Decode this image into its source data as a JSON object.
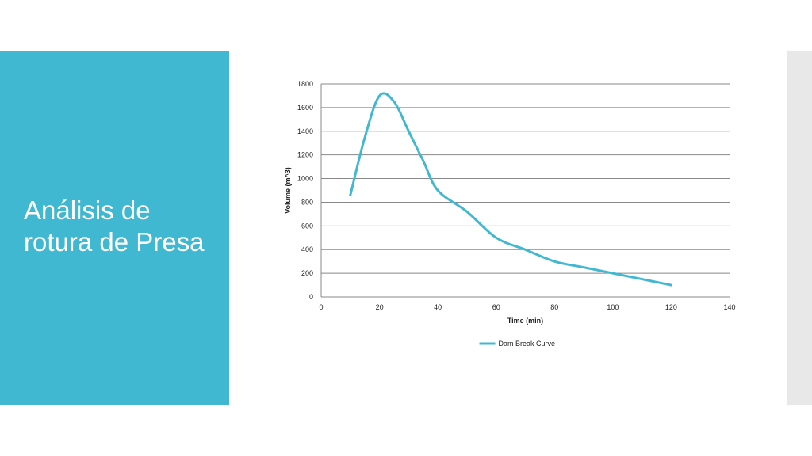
{
  "slide": {
    "title": "Análisis de\nrotura de Presa",
    "accent_color": "#41b8d2",
    "side_bar_color": "#e8e8e8"
  },
  "chart_data": {
    "type": "line",
    "x": [
      10,
      15,
      20,
      25,
      30,
      35,
      40,
      50,
      60,
      70,
      80,
      90,
      100,
      110,
      120
    ],
    "series": [
      {
        "name": "Dam Break Curve",
        "color": "#41b8d2",
        "values": [
          860,
          1350,
          1700,
          1650,
          1400,
          1150,
          900,
          720,
          500,
          400,
          300,
          250,
          200,
          150,
          100
        ]
      }
    ],
    "xlabel": "Time (min)",
    "ylabel": "Volume (m^3)",
    "xlim": [
      0,
      140
    ],
    "ylim": [
      0,
      1800
    ],
    "x_ticks": [
      0,
      20,
      40,
      60,
      80,
      100,
      120,
      140
    ],
    "y_ticks": [
      0,
      200,
      400,
      600,
      800,
      1000,
      1200,
      1400,
      1600,
      1800
    ],
    "grid": "horizontal",
    "legend_position": "bottom",
    "smooth": true
  }
}
